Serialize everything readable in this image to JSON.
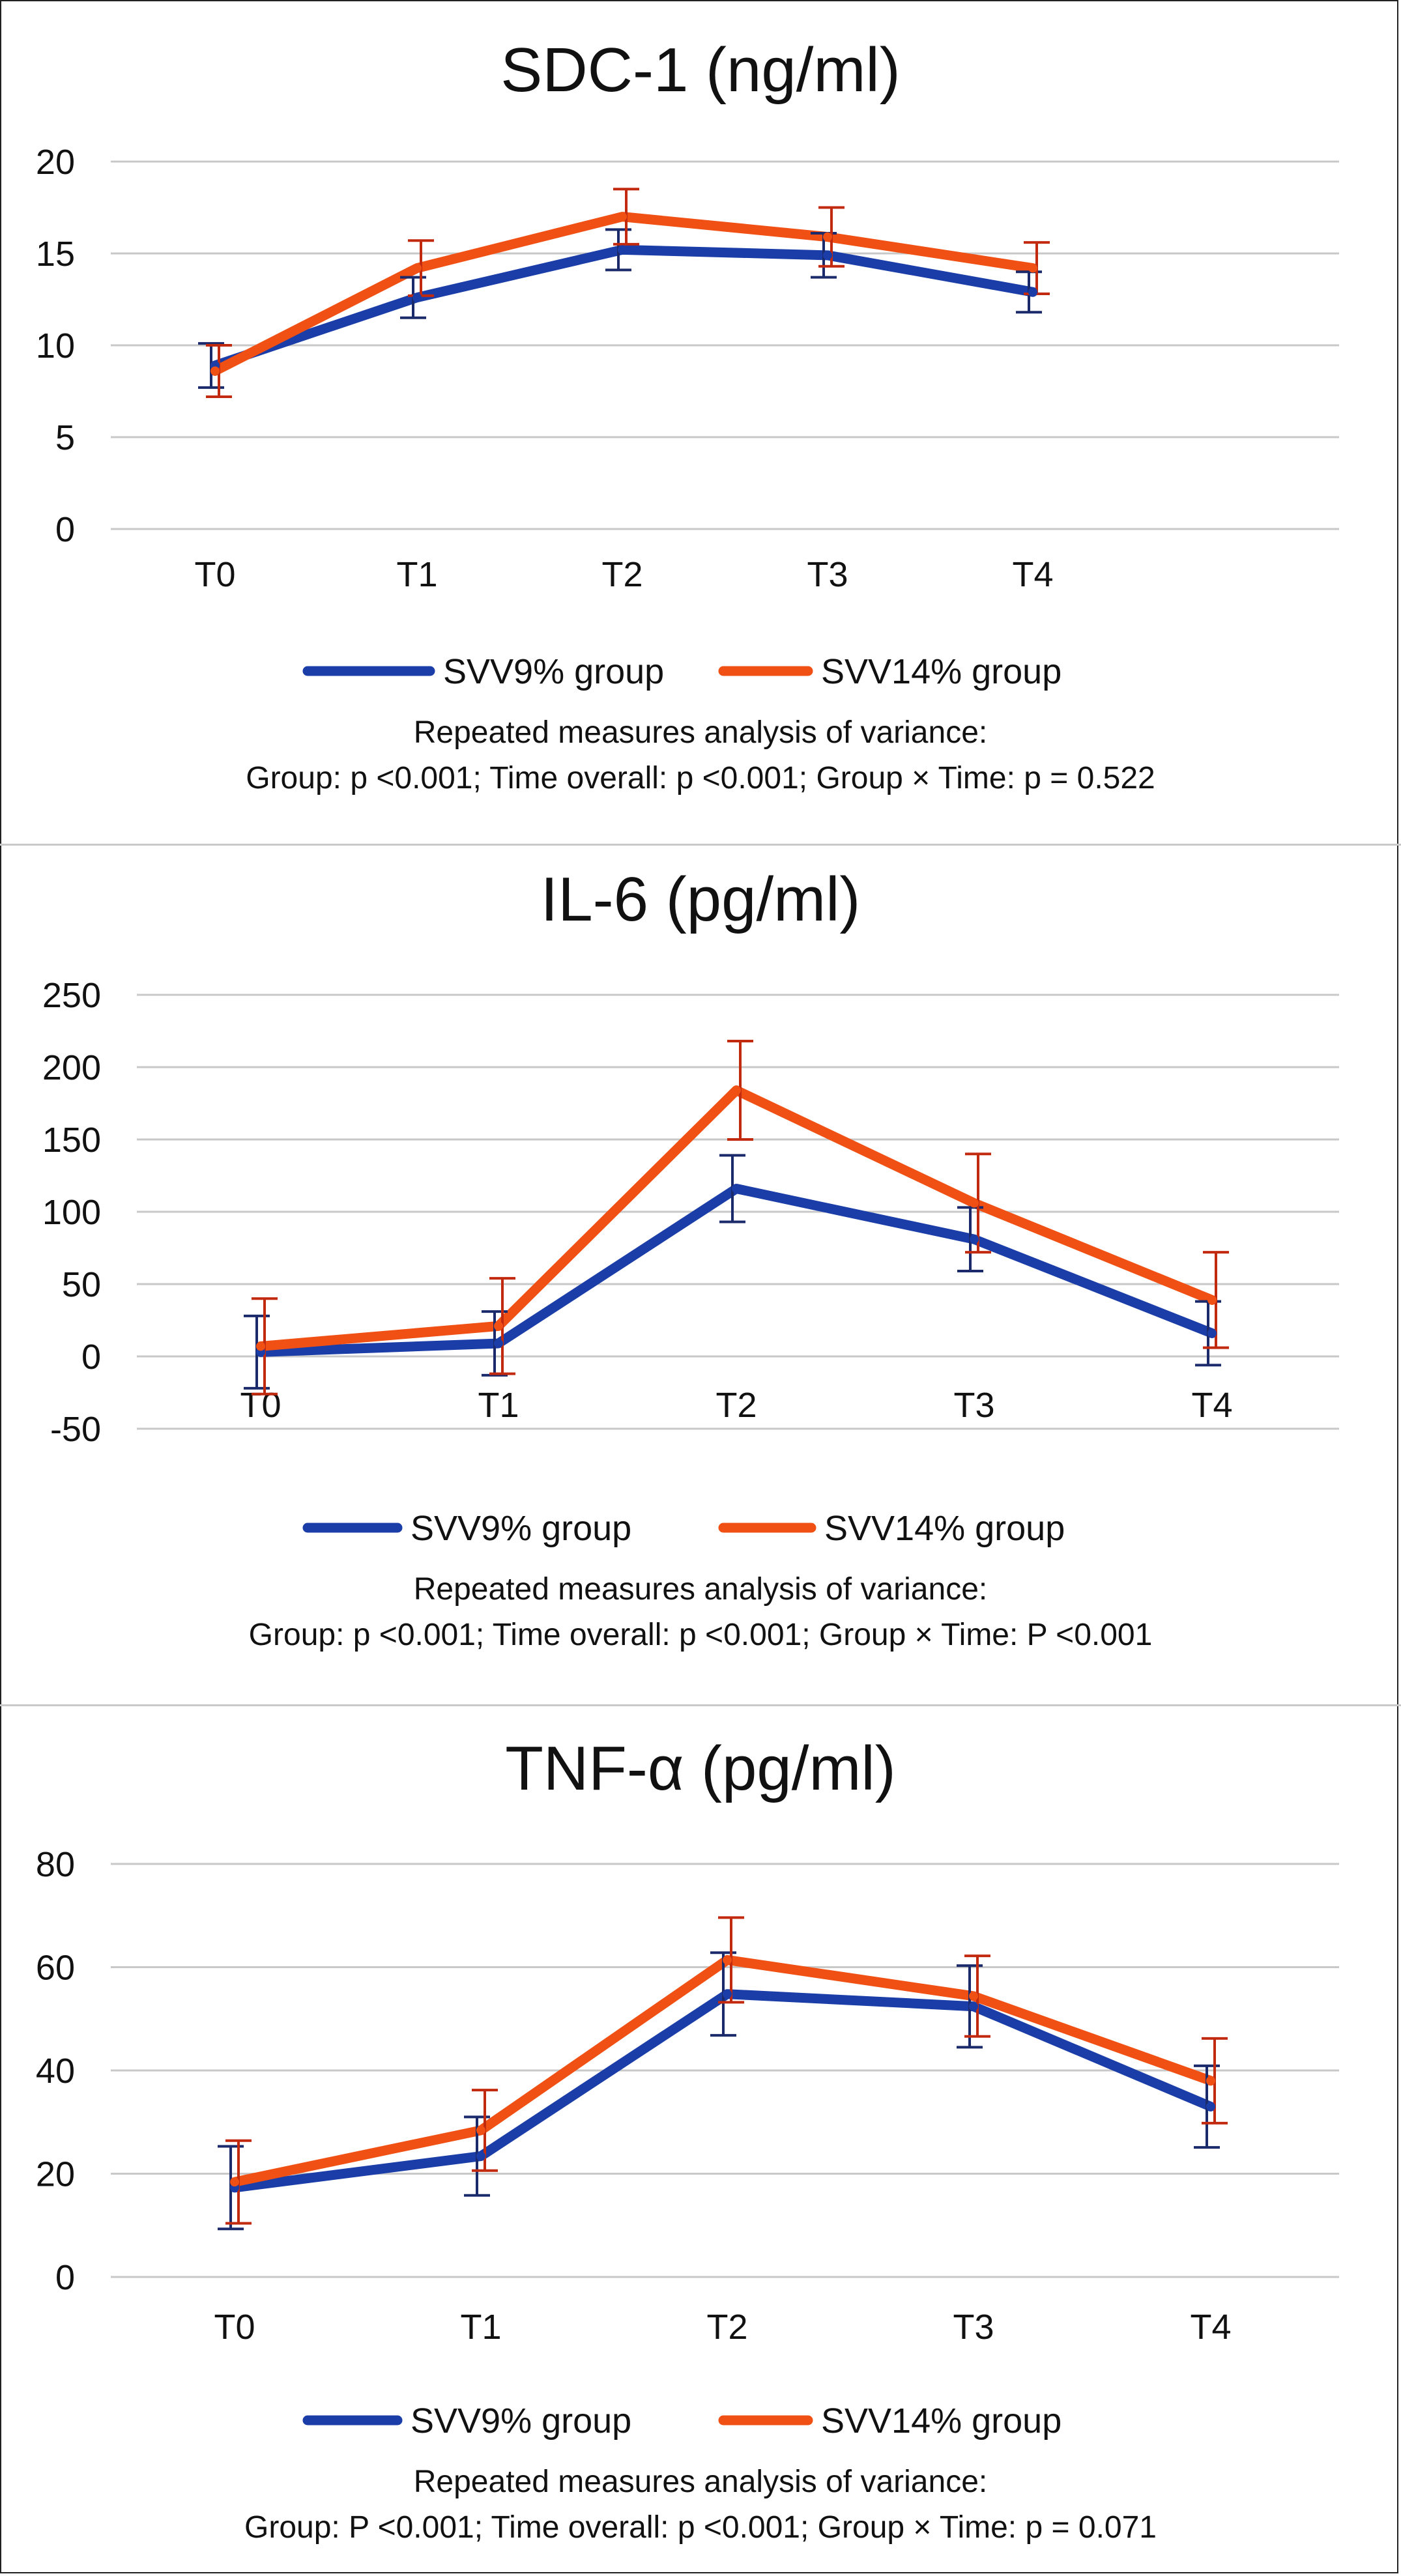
{
  "colors": {
    "svv9": "#1b3da8",
    "svv14": "#f05014",
    "err9": "#1b2a6b",
    "err14": "#c22a10",
    "grid": "#c8c8c8"
  },
  "chart_data": [
    {
      "type": "line",
      "title": "SDC-1 (ng/ml)",
      "categories": [
        "T0",
        "T1",
        "T2",
        "T3",
        "T4"
      ],
      "ylim": [
        0,
        20
      ],
      "yticks": [
        0,
        5,
        10,
        15,
        20
      ],
      "yticklabels": [
        "0",
        "5",
        "10",
        "15",
        "20"
      ],
      "grid": true,
      "legend": "bottom",
      "series": [
        {
          "name": "SVV9% group",
          "values": [
            8.9,
            12.6,
            15.2,
            14.9,
            12.9
          ],
          "err": [
            1.2,
            1.1,
            1.1,
            1.2,
            1.1
          ]
        },
        {
          "name": "SVV14% group",
          "values": [
            8.6,
            14.2,
            17.0,
            15.9,
            14.2
          ],
          "err": [
            1.4,
            1.5,
            1.5,
            1.6,
            1.4
          ]
        }
      ],
      "note": [
        "Repeated measures analysis of variance:",
        "Group: p <0.001; Time overall: p <0.001; Group × Time: p = 0.522"
      ]
    },
    {
      "type": "line",
      "title": "IL-6 (pg/ml)",
      "categories": [
        "T0",
        "T1",
        "T2",
        "T3",
        "T4"
      ],
      "ylim": [
        -50,
        250
      ],
      "yticks": [
        -50,
        0,
        50,
        100,
        150,
        200,
        250
      ],
      "yticklabels": [
        "-50",
        "0",
        "50",
        "100",
        "150",
        "200",
        "250"
      ],
      "grid": true,
      "legend": "bottom",
      "series": [
        {
          "name": "SVV9% group",
          "values": [
            3,
            9,
            116,
            81,
            16
          ],
          "err": [
            25,
            22,
            23,
            22,
            22
          ]
        },
        {
          "name": "SVV14% group",
          "values": [
            7,
            21,
            184,
            106,
            39
          ],
          "err": [
            33,
            33,
            34,
            34,
            33
          ]
        }
      ],
      "note": [
        "Repeated measures analysis of variance:",
        "Group: p <0.001; Time overall: p <0.001; Group × Time: P <0.001"
      ]
    },
    {
      "type": "line",
      "title": "TNF-α (pg/ml)",
      "categories": [
        "T0",
        "T1",
        "T2",
        "T3",
        "T4"
      ],
      "ylim": [
        0,
        80
      ],
      "yticks": [
        0,
        20,
        40,
        60,
        80
      ],
      "yticklabels": [
        "0",
        "20",
        "40",
        "60",
        "80"
      ],
      "grid": true,
      "legend": "bottom",
      "series": [
        {
          "name": "SVV9% group",
          "values": [
            17.3,
            23.4,
            54.8,
            52.4,
            33.0
          ],
          "err": [
            8,
            7.6,
            8,
            7.9,
            7.9
          ]
        },
        {
          "name": "SVV14% group",
          "values": [
            18.4,
            28.4,
            61.4,
            54.4,
            38.0
          ],
          "err": [
            8,
            7.8,
            8.2,
            7.8,
            8.2
          ]
        }
      ],
      "note": [
        "Repeated measures analysis of variance:",
        "Group: P <0.001; Time overall: p <0.001; Group × Time: p = 0.071"
      ]
    }
  ]
}
